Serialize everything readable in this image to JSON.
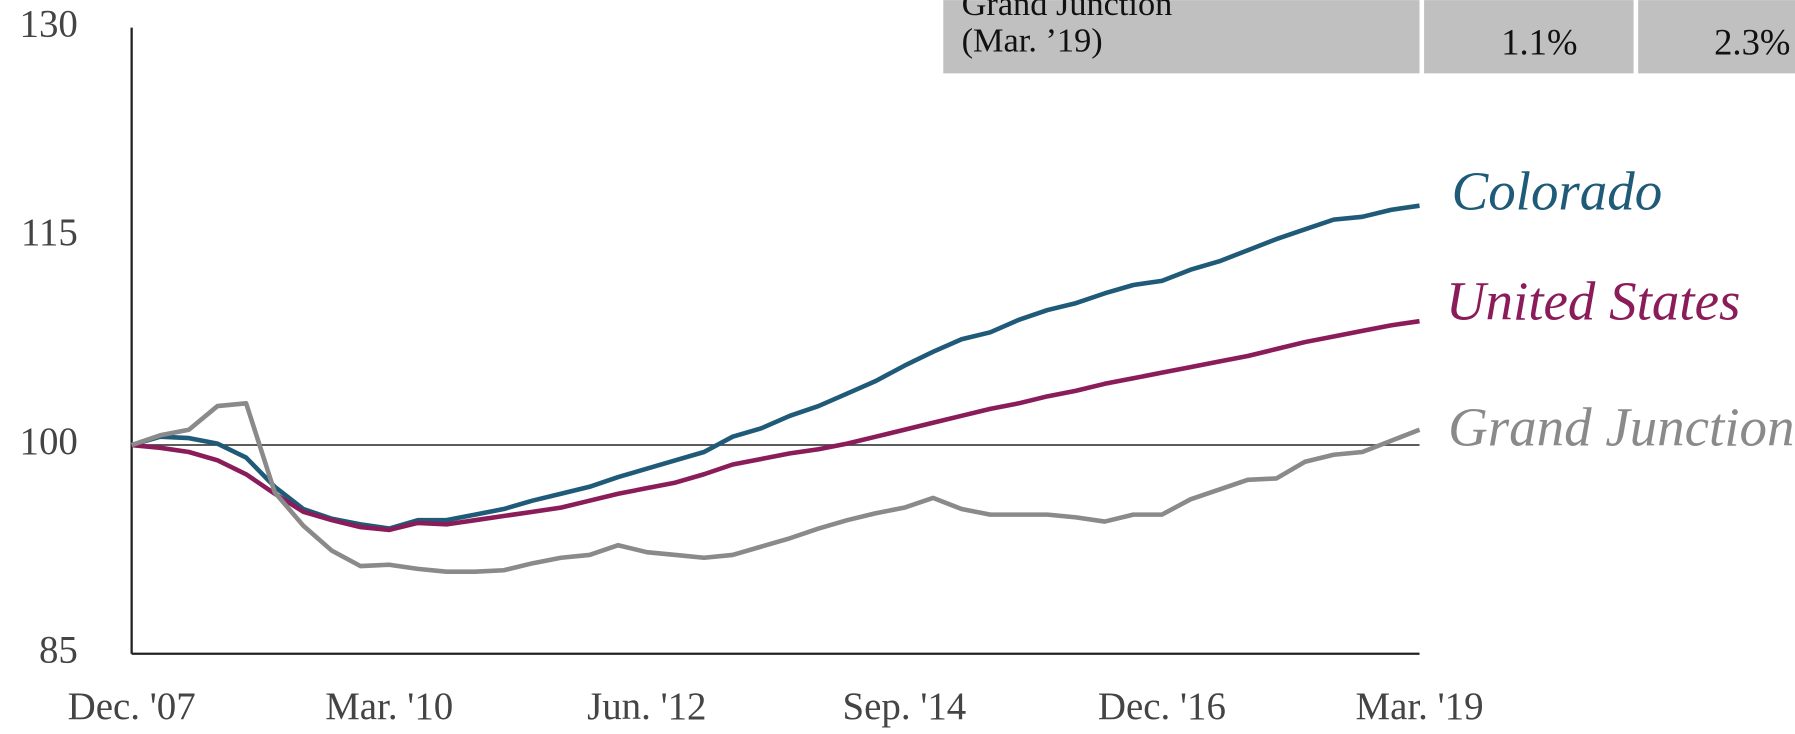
{
  "chart_data": {
    "type": "line",
    "categories": [
      "Dec. '07",
      null,
      null,
      null,
      null,
      null,
      null,
      null,
      null,
      "Mar. '10",
      null,
      null,
      null,
      null,
      null,
      null,
      null,
      null,
      "Jun. '12",
      null,
      null,
      null,
      null,
      null,
      null,
      null,
      null,
      "Sep. '14",
      null,
      null,
      null,
      null,
      null,
      null,
      null,
      null,
      "Dec. '16",
      null,
      null,
      null,
      null,
      null,
      null,
      null,
      null,
      "Mar. '19"
    ],
    "series": [
      {
        "name": "Colorado",
        "color": "#1f5b78",
        "values": [
          100,
          100.6,
          100.5,
          100.1,
          99.1,
          97.0,
          95.4,
          94.7,
          94.3,
          94.0,
          94.6,
          94.6,
          95.0,
          95.4,
          96.0,
          96.5,
          97.0,
          97.7,
          98.3,
          98.9,
          99.5,
          100.6,
          101.2,
          102.1,
          102.8,
          103.7,
          104.6,
          105.7,
          106.7,
          107.6,
          108.1,
          109.0,
          109.7,
          110.2,
          110.9,
          111.5,
          111.8,
          112.6,
          113.2,
          114.0,
          114.8,
          115.5,
          116.2,
          116.4,
          116.9,
          117.2
        ]
      },
      {
        "name": "United States",
        "color": "#8b1c5a",
        "values": [
          100,
          99.8,
          99.5,
          98.9,
          97.9,
          96.5,
          95.2,
          94.6,
          94.1,
          93.9,
          94.4,
          94.3,
          94.6,
          94.9,
          95.2,
          95.5,
          96.0,
          96.5,
          96.9,
          97.3,
          97.9,
          98.6,
          99.0,
          99.4,
          99.7,
          100.1,
          100.6,
          101.1,
          101.6,
          102.1,
          102.6,
          103.0,
          103.5,
          103.9,
          104.4,
          104.8,
          105.2,
          105.6,
          106.0,
          106.4,
          106.9,
          107.4,
          107.8,
          108.2,
          108.6,
          108.9
        ]
      },
      {
        "name": "Grand Junction",
        "color": "#8a8a8a",
        "values": [
          100,
          100.7,
          101.1,
          102.8,
          103.0,
          96.6,
          94.2,
          92.4,
          91.3,
          91.4,
          91.1,
          90.9,
          90.9,
          91.0,
          91.5,
          91.9,
          92.1,
          92.8,
          92.3,
          92.1,
          91.9,
          92.1,
          92.7,
          93.3,
          94.0,
          94.6,
          95.1,
          95.5,
          96.2,
          95.4,
          95.0,
          95.0,
          95.0,
          94.8,
          94.5,
          95.0,
          95.0,
          96.1,
          96.8,
          97.5,
          97.6,
          98.8,
          99.3,
          99.5,
          100.3,
          101.1
        ]
      }
    ],
    "ylim": [
      85,
      130
    ],
    "yticks": [
      85,
      100,
      115,
      130
    ],
    "reference_line": 100,
    "table": {
      "row_label": [
        "Grand Junction",
        "(Mar. ’19)"
      ],
      "values": [
        "1.1%",
        "2.3%"
      ]
    }
  }
}
